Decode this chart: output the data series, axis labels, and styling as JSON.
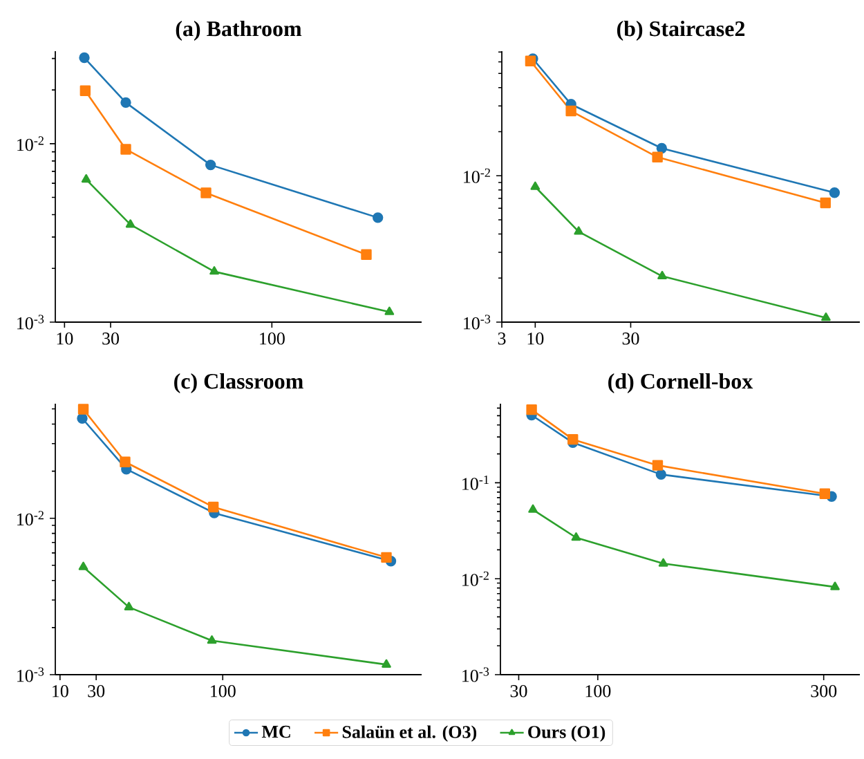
{
  "chart_data": [
    {
      "type": "line",
      "title": "(a) Bathroom",
      "log": "y",
      "xlim": [
        6,
        165
      ],
      "ylim": [
        0.001,
        0.033
      ],
      "xticks": [
        10,
        30,
        100
      ],
      "yticks": [
        {
          "value": 0.001,
          "label": "10$^{-3}$"
        },
        {
          "value": 0.01,
          "label": "10$^{-2}$"
        }
      ],
      "series": [
        {
          "color": "#1f77b4",
          "marker": "circle",
          "x": [
            18.6,
            36.6,
            73.4,
            146
          ],
          "values": [
            0.0303,
            0.017,
            0.0076,
            0.00385
          ]
        },
        {
          "color": "#ff7f0e",
          "marker": "square",
          "x": [
            19,
            36.6,
            71.4,
            141
          ],
          "values": [
            0.0198,
            0.0093,
            0.0053,
            0.00239
          ]
        },
        {
          "color": "#2ca02c",
          "marker": "triangle",
          "x": [
            19.4,
            38.6,
            75,
            151
          ],
          "values": [
            0.0063,
            0.00352,
            0.00192,
            0.00114
          ]
        }
      ]
    },
    {
      "type": "line",
      "title": "(b) Staircase2",
      "log": "y",
      "xlim": [
        3,
        78
      ],
      "ylim": [
        0.001,
        0.071
      ],
      "xticks": [
        3,
        10,
        30
      ],
      "yticks": [
        {
          "value": 0.001,
          "label": "10$^{-3}$"
        },
        {
          "value": 0.01,
          "label": "10$^{-2}$"
        }
      ],
      "series": [
        {
          "color": "#1f77b4",
          "marker": "circle",
          "x": [
            9.5,
            17.5,
            36.5,
            72.7
          ],
          "values": [
            0.063,
            0.0308,
            0.0154,
            0.00766
          ]
        },
        {
          "color": "#ff7f0e",
          "marker": "square",
          "x": [
            9,
            17.5,
            35.6,
            70.8
          ],
          "values": [
            0.0608,
            0.0277,
            0.0134,
            0.00653
          ]
        },
        {
          "color": "#2ca02c",
          "marker": "triangle",
          "x": [
            10,
            19.1,
            36.6,
            70.9
          ],
          "values": [
            0.0084,
            0.00415,
            0.00206,
            0.00107
          ]
        }
      ]
    },
    {
      "type": "line",
      "title": "(c) Classroom",
      "log": "y",
      "xlim": [
        7.4,
        210
      ],
      "ylim": [
        0.001,
        0.054
      ],
      "xticks": [
        10,
        30,
        100
      ],
      "yticks": [
        {
          "value": 0.001,
          "label": "10$^{-3}$"
        },
        {
          "value": 0.01,
          "label": "10$^{-2}$"
        }
      ],
      "series": [
        {
          "color": "#1f77b4",
          "marker": "circle",
          "x": [
            22.3,
            46.7,
            95.3,
            193
          ],
          "values": [
            0.0435,
            0.0206,
            0.0108,
            0.00532
          ]
        },
        {
          "color": "#ff7f0e",
          "marker": "square",
          "x": [
            22.9,
            46,
            94.8,
            190.5
          ],
          "values": [
            0.0498,
            0.0229,
            0.0118,
            0.00562
          ]
        },
        {
          "color": "#2ca02c",
          "marker": "triangle",
          "x": [
            22.9,
            48.1,
            94,
            190.5
          ],
          "values": [
            0.00488,
            0.0027,
            0.00165,
            0.00116
          ]
        }
      ]
    },
    {
      "type": "line",
      "title": "(d) Cornell-box",
      "log": "y",
      "legend": "bottom",
      "xlim": [
        13.8,
        332
      ],
      "ylim": [
        0.001,
        0.667
      ],
      "xticks": [
        30,
        100,
        300
      ],
      "yticks": [
        {
          "value": 0.001,
          "label": "10$^{-3}$"
        },
        {
          "value": 0.01,
          "label": "10$^{-2}$"
        },
        {
          "value": 0.1,
          "label": "10$^{-1}$"
        }
      ],
      "series": [
        {
          "name": "MC",
          "color": "#1f77b4",
          "marker": "circle",
          "x": [
            41.4,
            77.9,
            156,
            307
          ],
          "values": [
            0.507,
            0.262,
            0.122,
            0.072
          ]
        },
        {
          "name": "Salaün et al. (O3)",
          "color": "#ff7f0e",
          "marker": "square",
          "x": [
            41.4,
            77.9,
            153,
            301
          ],
          "values": [
            0.578,
            0.283,
            0.152,
            0.0769
          ]
        },
        {
          "name": "Ours (O1)",
          "color": "#2ca02c",
          "marker": "triangle",
          "x": [
            42.6,
            80.8,
            158,
            310
          ],
          "values": [
            0.0524,
            0.0268,
            0.0144,
            0.0082
          ]
        }
      ]
    }
  ]
}
